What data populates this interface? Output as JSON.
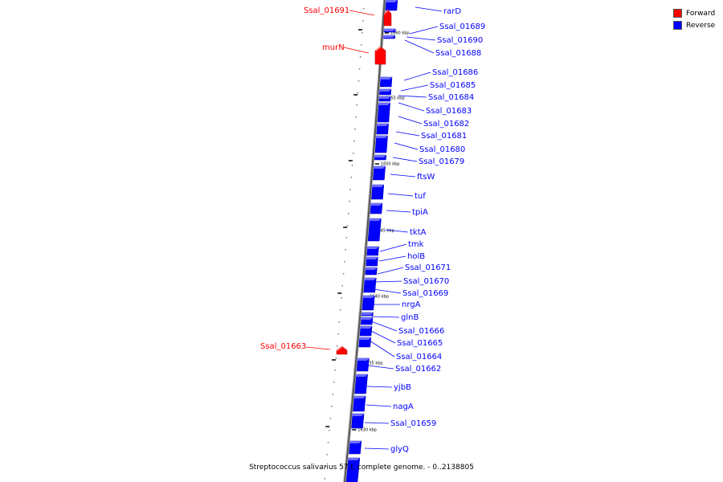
{
  "legend": {
    "forward_label": "Forward",
    "reverse_label": "Reverse",
    "forward_color": "#ff0000",
    "reverse_color": "#0000ff"
  },
  "caption": "Streptococcus salivarius 57.I, complete genome. - 0..2138805",
  "ticks": [
    "1660 kbp",
    "1655 kbp",
    "1650 kbp",
    "1645 kbp",
    "1640 kbp",
    "1635 kbp",
    "1630 kbp"
  ],
  "genes": {
    "forward": [
      "Ssal_01691",
      "murN",
      "Ssal_01663"
    ],
    "reverse": [
      "rarD",
      "Ssal_01689",
      "Ssal_01690",
      "Ssal_01688",
      "Ssal_01686",
      "Ssal_01685",
      "Ssal_01684",
      "Ssal_01683",
      "Ssal_01682",
      "Ssal_01681",
      "Ssal_01680",
      "Ssal_01679",
      "ftsW",
      "tuf",
      "tpiA",
      "tktA",
      "tmk",
      "holB",
      "Ssal_01671",
      "Ssal_01670",
      "Ssal_01669",
      "nrgA",
      "glnB",
      "Ssal_01666",
      "Ssal_01665",
      "Ssal_01664",
      "Ssal_01662",
      "yjbB",
      "nagA",
      "Ssal_01659",
      "glyQ"
    ]
  }
}
